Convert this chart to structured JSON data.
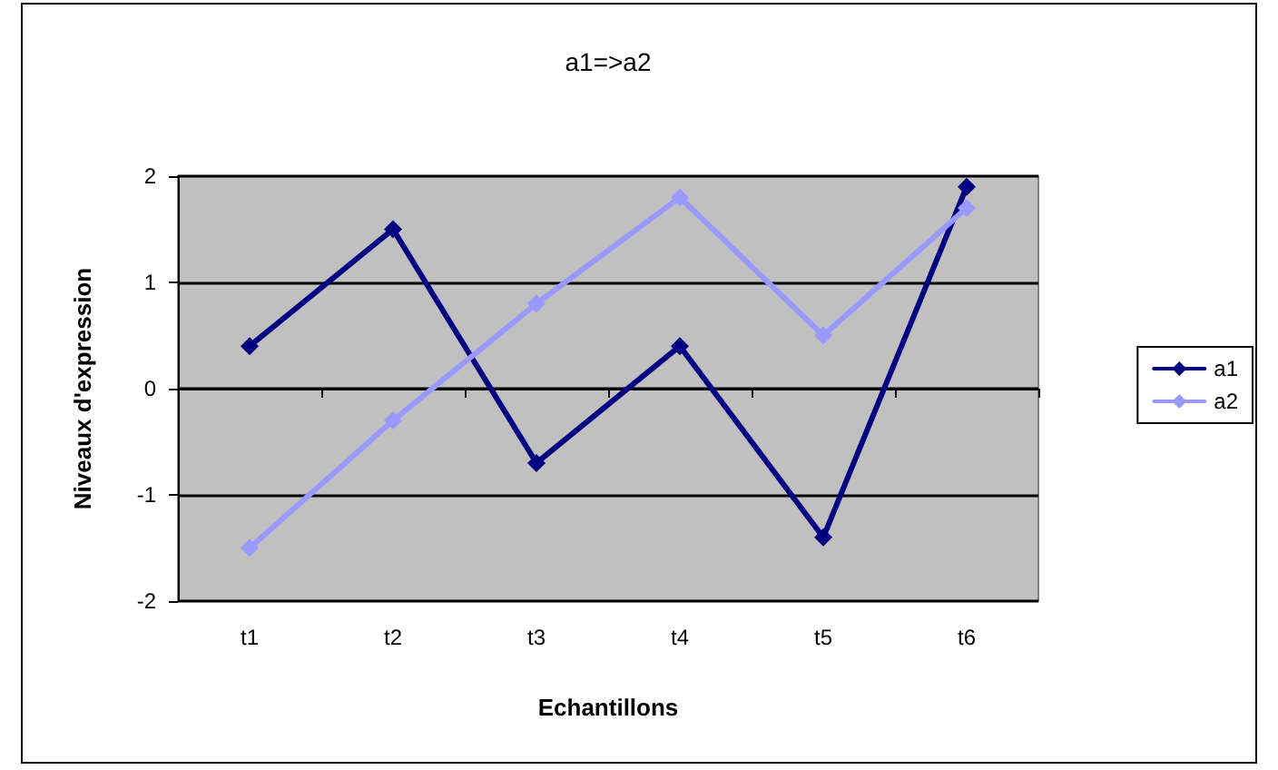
{
  "chart_data": {
    "type": "line",
    "title": "a1=>a2",
    "xlabel": "Echantillons",
    "ylabel": "Niveaux d'expression",
    "categories": [
      "t1",
      "t2",
      "t3",
      "t4",
      "t5",
      "t6"
    ],
    "series": [
      {
        "name": "a1",
        "color": "#000080",
        "values": [
          0.4,
          1.5,
          -0.7,
          0.4,
          -1.4,
          1.9
        ]
      },
      {
        "name": "a2",
        "color": "#9999ff",
        "values": [
          -1.5,
          -0.3,
          0.8,
          1.8,
          0.5,
          1.7
        ]
      }
    ],
    "ylim": [
      -2,
      2
    ],
    "yticks": [
      -2,
      -1,
      0,
      1,
      2
    ],
    "grid": "y",
    "legend": "right",
    "marker": "diamond",
    "line_style": "solid"
  }
}
